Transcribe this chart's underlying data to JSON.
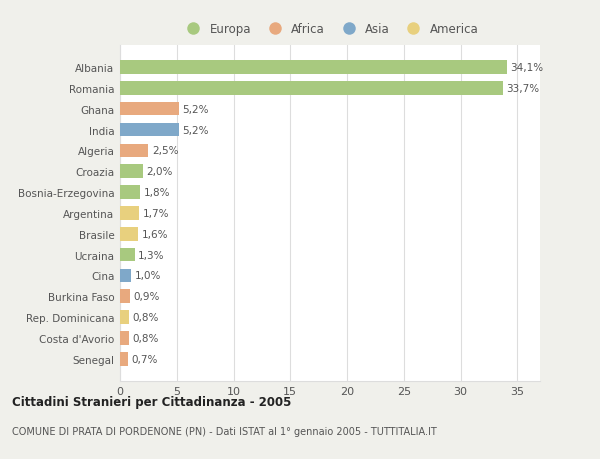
{
  "countries": [
    "Albania",
    "Romania",
    "Ghana",
    "India",
    "Algeria",
    "Croazia",
    "Bosnia-Erzegovina",
    "Argentina",
    "Brasile",
    "Ucraina",
    "Cina",
    "Burkina Faso",
    "Rep. Dominicana",
    "Costa d'Avorio",
    "Senegal"
  ],
  "values": [
    34.1,
    33.7,
    5.2,
    5.2,
    2.5,
    2.0,
    1.8,
    1.7,
    1.6,
    1.3,
    1.0,
    0.9,
    0.8,
    0.8,
    0.7
  ],
  "labels": [
    "34,1%",
    "33,7%",
    "5,2%",
    "5,2%",
    "2,5%",
    "2,0%",
    "1,8%",
    "1,7%",
    "1,6%",
    "1,3%",
    "1,0%",
    "0,9%",
    "0,8%",
    "0,8%",
    "0,7%"
  ],
  "continents": [
    "Europa",
    "Europa",
    "Africa",
    "Asia",
    "Africa",
    "Europa",
    "Europa",
    "America",
    "America",
    "Europa",
    "Asia",
    "Africa",
    "America",
    "Africa",
    "Africa"
  ],
  "continent_colors": {
    "Europa": "#a8c97f",
    "Africa": "#e8a97e",
    "Asia": "#7fa8c9",
    "America": "#e8d07e"
  },
  "legend_order": [
    "Europa",
    "Africa",
    "Asia",
    "America"
  ],
  "title": "Cittadini Stranieri per Cittadinanza - 2005",
  "subtitle": "COMUNE DI PRATA DI PORDENONE (PN) - Dati ISTAT al 1° gennaio 2005 - TUTTITALIA.IT",
  "xlim": [
    0,
    37
  ],
  "xticks": [
    0,
    5,
    10,
    15,
    20,
    25,
    30,
    35
  ],
  "background_color": "#f0f0eb",
  "plot_background": "#ffffff",
  "grid_color": "#dddddd",
  "bar_height": 0.65,
  "text_color": "#555555",
  "label_fontsize": 7.5,
  "ytick_fontsize": 7.5,
  "xtick_fontsize": 8.0
}
